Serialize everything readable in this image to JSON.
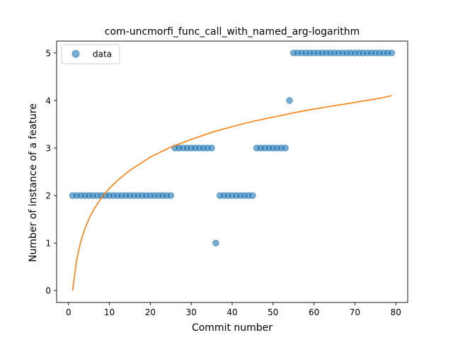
{
  "chart_data": {
    "type": "scatter",
    "title": "com-uncmorfi_func_call_with_named_arg-logarithm",
    "xlabel": "Commit number",
    "ylabel": "Number of instance of a feature",
    "xlim": [
      -2.9,
      82.9
    ],
    "ylim": [
      -0.25,
      5.25
    ],
    "xticks": [
      0,
      10,
      20,
      30,
      40,
      50,
      60,
      70,
      80
    ],
    "yticks": [
      0,
      1,
      2,
      3,
      4,
      5
    ],
    "grid": false,
    "legend": {
      "position": "top-left",
      "entries": [
        "data"
      ]
    },
    "colors": {
      "data": "#1f77b4",
      "fit": "#ff7f0e"
    },
    "series": [
      {
        "name": "data",
        "kind": "scatter",
        "x": [
          1,
          2,
          3,
          4,
          5,
          6,
          7,
          8,
          9,
          10,
          11,
          12,
          13,
          14,
          15,
          16,
          17,
          18,
          19,
          20,
          21,
          22,
          23,
          24,
          25,
          26,
          27,
          28,
          29,
          30,
          31,
          32,
          33,
          34,
          35,
          36,
          37,
          38,
          39,
          40,
          41,
          42,
          43,
          44,
          45,
          46,
          47,
          48,
          49,
          50,
          51,
          52,
          53,
          54,
          55,
          56,
          57,
          58,
          59,
          60,
          61,
          62,
          63,
          64,
          65,
          66,
          67,
          68,
          69,
          70,
          71,
          72,
          73,
          74,
          75,
          76,
          77,
          78,
          79
        ],
        "y": [
          2,
          2,
          2,
          2,
          2,
          2,
          2,
          2,
          2,
          2,
          2,
          2,
          2,
          2,
          2,
          2,
          2,
          2,
          2,
          2,
          2,
          2,
          2,
          2,
          2,
          3,
          3,
          3,
          3,
          3,
          3,
          3,
          3,
          3,
          3,
          1,
          2,
          2,
          2,
          2,
          2,
          2,
          2,
          2,
          2,
          3,
          3,
          3,
          3,
          3,
          3,
          3,
          3,
          4,
          5,
          5,
          5,
          5,
          5,
          5,
          5,
          5,
          5,
          5,
          5,
          5,
          5,
          5,
          5,
          5,
          5,
          5,
          5,
          5,
          5,
          5,
          5,
          5,
          5
        ]
      },
      {
        "name": "",
        "kind": "line",
        "x": [
          1,
          2,
          3,
          4,
          5,
          6,
          8,
          10,
          12,
          15,
          20,
          25,
          30,
          35,
          40,
          45,
          50,
          55,
          60,
          65,
          70,
          75,
          79
        ],
        "y": [
          0.0,
          0.65,
          1.03,
          1.3,
          1.51,
          1.68,
          1.95,
          2.15,
          2.32,
          2.53,
          2.81,
          3.02,
          3.18,
          3.33,
          3.45,
          3.56,
          3.65,
          3.74,
          3.82,
          3.89,
          3.96,
          4.03,
          4.1
        ]
      }
    ]
  }
}
